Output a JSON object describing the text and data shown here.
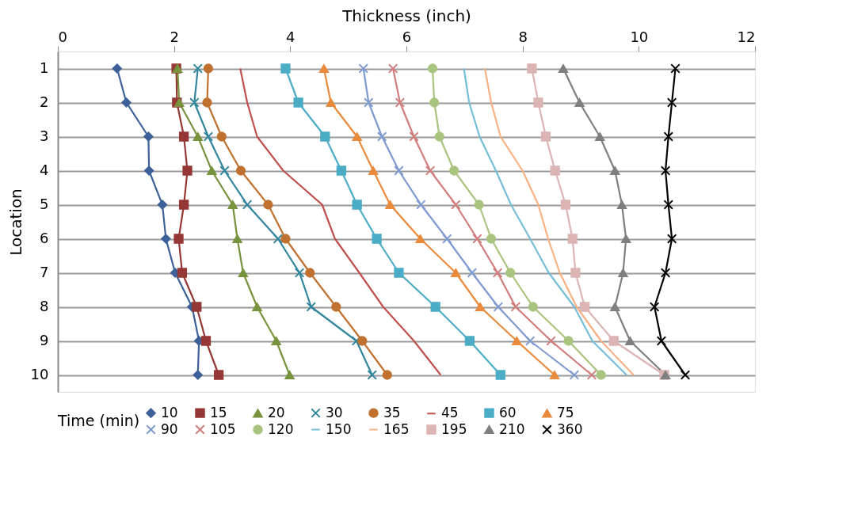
{
  "chart_data": {
    "type": "line",
    "xlabel": "Thickness (inch)",
    "ylabel": "Location",
    "legend_title": "Time (min)",
    "categories": [
      "1",
      "2",
      "3",
      "4",
      "5",
      "6",
      "7",
      "8",
      "9",
      "10"
    ],
    "orientation": "horizontal",
    "xlim": [
      0,
      12
    ],
    "xticks": [
      0,
      2,
      4,
      6,
      8,
      10,
      12
    ],
    "grid": "y",
    "legend": "bottom",
    "line_style": "solid",
    "series": [
      {
        "name": "10",
        "color": "#3c6198",
        "marker": "diamond",
        "values": [
          1.02,
          1.18,
          1.56,
          1.57,
          1.8,
          1.86,
          2.02,
          2.31,
          2.43,
          2.41
        ]
      },
      {
        "name": "15",
        "color": "#953735",
        "marker": "square",
        "values": [
          2.04,
          2.05,
          2.17,
          2.23,
          2.17,
          2.08,
          2.14,
          2.39,
          2.55,
          2.77
        ]
      },
      {
        "name": "20",
        "color": "#77933c",
        "marker": "triangle",
        "values": [
          2.06,
          2.09,
          2.41,
          2.65,
          3.01,
          3.09,
          3.19,
          3.43,
          3.76,
          3.99
        ]
      },
      {
        "name": "30",
        "color": "#31859c",
        "marker": "cross",
        "values": [
          2.41,
          2.35,
          2.59,
          2.87,
          3.26,
          3.79,
          4.16,
          4.36,
          5.14,
          5.41
        ]
      },
      {
        "name": "35",
        "color": "#c0712f",
        "marker": "circle",
        "values": [
          2.59,
          2.57,
          2.82,
          3.15,
          3.62,
          3.92,
          4.34,
          4.79,
          5.24,
          5.67
        ]
      },
      {
        "name": "45",
        "color": "#c0504d",
        "marker": "none",
        "values": [
          3.14,
          3.26,
          3.43,
          3.88,
          4.55,
          4.77,
          5.19,
          5.6,
          6.13,
          6.59
        ]
      },
      {
        "name": "60",
        "color": "#4bacc6",
        "marker": "square",
        "values": [
          3.92,
          4.14,
          4.6,
          4.88,
          5.15,
          5.49,
          5.87,
          6.5,
          7.09,
          7.62
        ]
      },
      {
        "name": "75",
        "color": "#e98a3c",
        "marker": "triangle",
        "values": [
          4.58,
          4.7,
          5.15,
          5.43,
          5.72,
          6.24,
          6.85,
          7.27,
          7.9,
          8.55
        ]
      },
      {
        "name": "90",
        "color": "#7f9ad0",
        "marker": "cross",
        "values": [
          5.26,
          5.35,
          5.58,
          5.87,
          6.25,
          6.7,
          7.13,
          7.58,
          8.13,
          8.89
        ]
      },
      {
        "name": "105",
        "color": "#d07d7b",
        "marker": "cross",
        "values": [
          5.77,
          5.89,
          6.13,
          6.41,
          6.85,
          7.22,
          7.57,
          7.88,
          8.49,
          9.19
        ]
      },
      {
        "name": "120",
        "color": "#a9c47f",
        "marker": "circle",
        "values": [
          6.45,
          6.48,
          6.57,
          6.82,
          7.25,
          7.46,
          7.79,
          8.18,
          8.79,
          9.35
        ]
      },
      {
        "name": "150",
        "color": "#76bdd6",
        "marker": "none",
        "values": [
          6.99,
          7.08,
          7.26,
          7.54,
          7.8,
          8.13,
          8.45,
          8.89,
          9.2,
          9.79
        ]
      },
      {
        "name": "165",
        "color": "#fab083",
        "marker": "none",
        "values": [
          7.35,
          7.46,
          7.62,
          8.0,
          8.27,
          8.44,
          8.64,
          8.93,
          9.35,
          9.91
        ]
      },
      {
        "name": "195",
        "color": "#dcb4b4",
        "marker": "square",
        "values": [
          8.16,
          8.27,
          8.4,
          8.56,
          8.74,
          8.86,
          8.91,
          9.07,
          9.57,
          10.44
        ]
      },
      {
        "name": "210",
        "color": "#7f7f7f",
        "marker": "triangle",
        "values": [
          8.7,
          8.98,
          9.33,
          9.59,
          9.71,
          9.78,
          9.73,
          9.59,
          9.85,
          10.46
        ]
      },
      {
        "name": "360",
        "color": "#000000",
        "marker": "cross",
        "values": [
          10.63,
          10.57,
          10.51,
          10.46,
          10.51,
          10.57,
          10.46,
          10.27,
          10.39,
          10.8
        ]
      }
    ]
  }
}
